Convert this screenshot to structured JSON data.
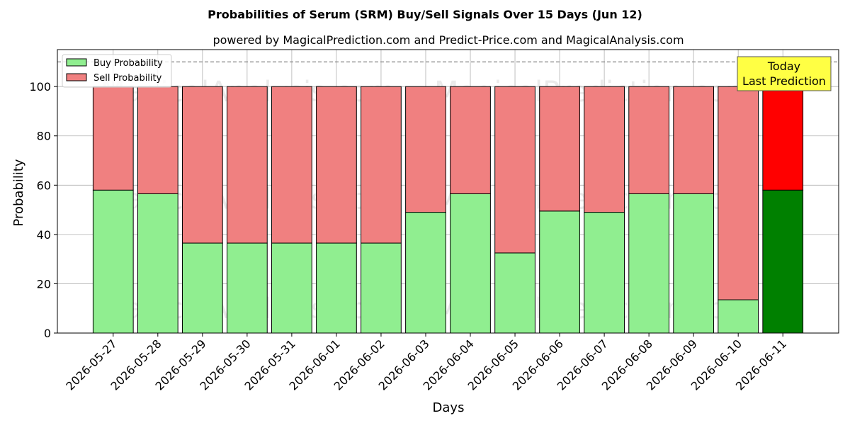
{
  "chart_data": {
    "type": "bar",
    "stacked": true,
    "title": "Probabilities of Serum (SRM) Buy/Sell Signals Over 15 Days (Jun 12)",
    "subtitle": "powered by MagicalPrediction.com and Predict-Price.com and MagicalAnalysis.com",
    "xlabel": "Days",
    "ylabel": "Probability",
    "ylim": [
      0,
      115
    ],
    "yticks": [
      0,
      20,
      40,
      60,
      80,
      100
    ],
    "grid": true,
    "reference_line": 110,
    "legend_position": "top-left",
    "categories": [
      "2026-05-27",
      "2026-05-28",
      "2026-05-29",
      "2026-05-30",
      "2026-05-31",
      "2026-06-01",
      "2026-06-02",
      "2026-06-03",
      "2026-06-04",
      "2026-06-05",
      "2026-06-06",
      "2026-06-07",
      "2026-06-08",
      "2026-06-09",
      "2026-06-10",
      "2026-06-11"
    ],
    "series": [
      {
        "name": "Buy Probability",
        "color": "#90ee90",
        "highlight_color": "#008000",
        "values": [
          58,
          56.5,
          36.5,
          36.5,
          36.5,
          36.5,
          36.5,
          49,
          56.5,
          32.5,
          49.5,
          49,
          56.5,
          56.5,
          13.5,
          58
        ]
      },
      {
        "name": "Sell Probability",
        "color": "#f08080",
        "highlight_color": "#ff0000",
        "values": [
          42,
          43.5,
          63.5,
          63.5,
          63.5,
          63.5,
          63.5,
          51,
          43.5,
          67.5,
          50.5,
          51,
          43.5,
          43.5,
          86.5,
          42
        ]
      }
    ],
    "highlight_index": 15,
    "annotation": {
      "line1": "Today",
      "line2": "Last Prediction"
    },
    "watermarks": [
      "MagicalAnalysis.com",
      "MagicalPrediction.com"
    ]
  }
}
